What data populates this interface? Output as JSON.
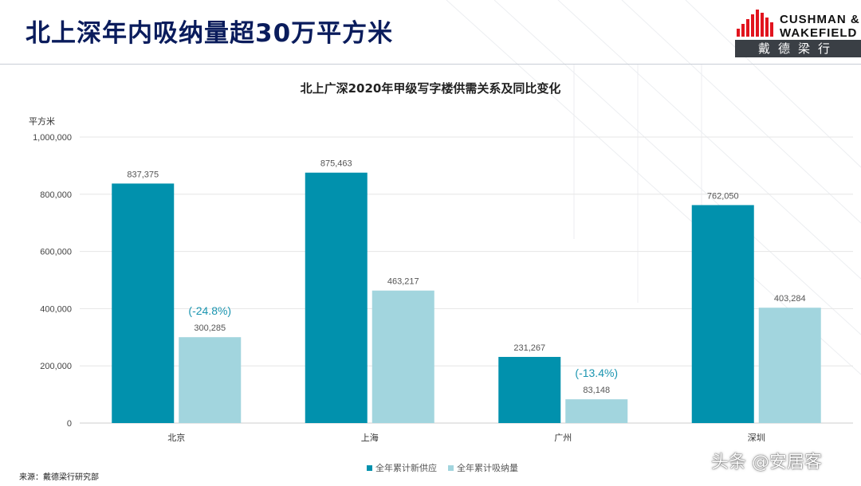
{
  "slide": {
    "title": "北上深年内吸纳量超30万平方米",
    "logo_line1": "CUSHMAN &",
    "logo_line2": "WAKEFIELD",
    "logo_cn": "戴德梁行",
    "source": "来源：戴德梁行研究部",
    "watermark": "头条 @安居客"
  },
  "colors": {
    "supply": "#0191ad",
    "absorption": "#a2d5de",
    "annotation": "#1a95b0",
    "title": "#0a1c5c"
  },
  "chart_data": {
    "type": "bar",
    "title": "北上广深2020年甲级写字楼供需关系及同比变化",
    "ylabel": "平方米",
    "xlabel": "",
    "categories": [
      "北京",
      "上海",
      "广州",
      "深圳"
    ],
    "series": [
      {
        "name": "全年累计新供应",
        "values": [
          837375,
          875463,
          231267,
          762050
        ],
        "labels": [
          "837,375",
          "875,463",
          "231,267",
          "762,050"
        ]
      },
      {
        "name": "全年累计吸纳量",
        "values": [
          300285,
          463217,
          83148,
          403284
        ],
        "labels": [
          "300,285",
          "463,217",
          "83,148",
          "403,284"
        ]
      }
    ],
    "annotations": [
      {
        "category": "北京",
        "series": "全年累计吸纳量",
        "text": "(-24.8%)"
      },
      {
        "category": "广州",
        "series": "全年累计吸纳量",
        "text": "(-13.4%)"
      }
    ],
    "ylim": [
      0,
      1000000
    ],
    "yticks": [
      0,
      200000,
      400000,
      600000,
      800000,
      1000000
    ],
    "ytick_labels": [
      "0",
      "200,000",
      "400,000",
      "600,000",
      "800,000",
      "1,000,000"
    ],
    "grid": true,
    "legend": "bottom-center"
  }
}
